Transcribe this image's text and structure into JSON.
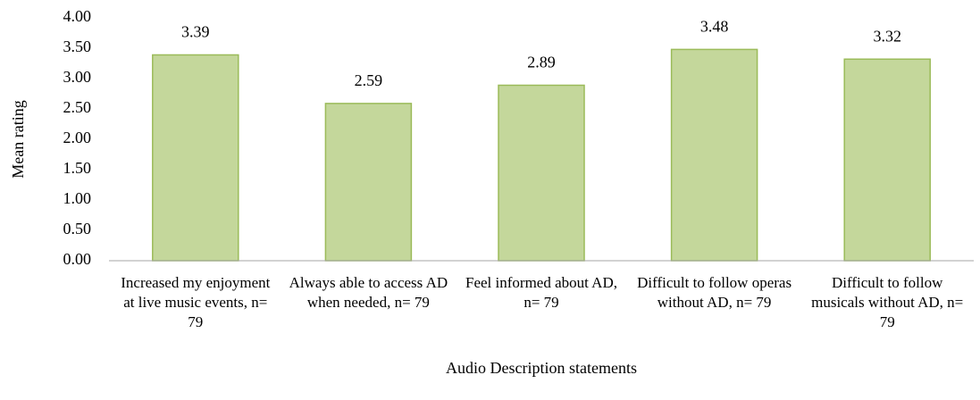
{
  "chart_data": {
    "type": "bar",
    "categories": [
      "Increased my enjoyment at live music events, n= 79",
      "Always able to access AD when needed, n= 79",
      "Feel informed about AD, n= 79",
      "Difficult to follow operas without AD, n= 79",
      "Difficult to follow musicals without AD, n= 79"
    ],
    "values": [
      3.39,
      2.59,
      2.89,
      3.48,
      3.32
    ],
    "color": "#c4d79b",
    "edge_color": "#9bbb59",
    "xlabel": "Audio Description statements",
    "ylabel": "Mean rating",
    "ylim": [
      0,
      4
    ],
    "yticks": [
      {
        "value": 0,
        "label": "0.00"
      },
      {
        "value": 0.5,
        "label": "0.50"
      },
      {
        "value": 1,
        "label": "1.00"
      },
      {
        "value": 1.5,
        "label": "1.50"
      },
      {
        "value": 2,
        "label": "2.00"
      },
      {
        "value": 2.5,
        "label": "2.50"
      },
      {
        "value": 3,
        "label": "3.00"
      },
      {
        "value": 3.5,
        "label": "3.50"
      },
      {
        "value": 4,
        "label": "4.00"
      }
    ],
    "grid": false
  }
}
